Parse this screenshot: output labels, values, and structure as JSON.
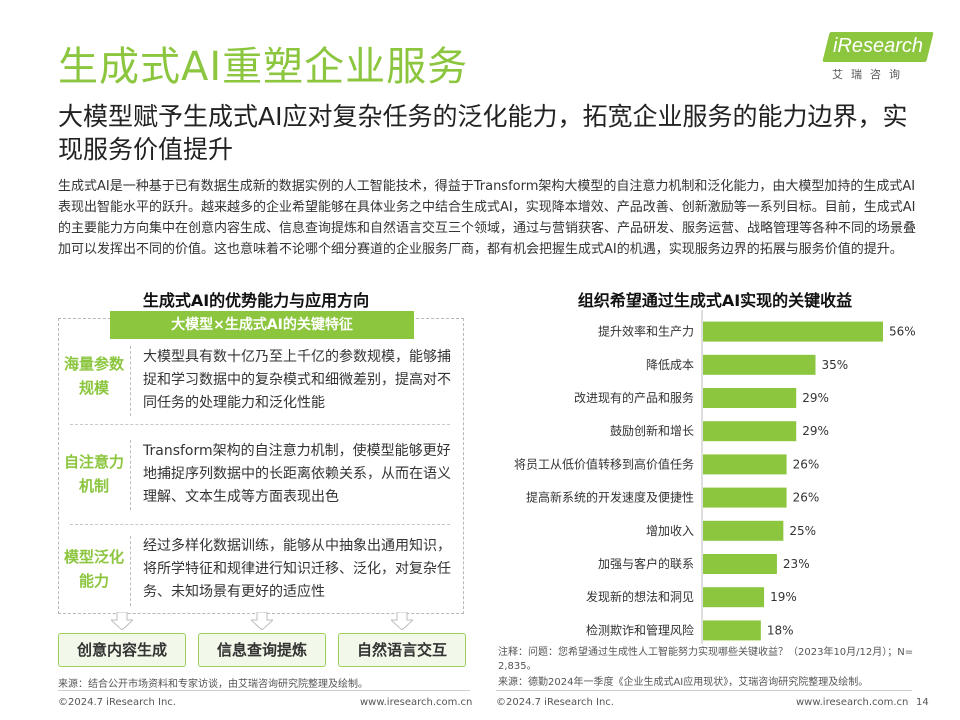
{
  "title": "生成式AI重塑企业服务",
  "logo": {
    "wordmark": "iResearch",
    "subtitle": "艾瑞咨询"
  },
  "subtitle": "大模型赋予生成式AI应对复杂任务的泛化能力，拓宽企业服务的能力边界，实现服务价值提升",
  "intro": "生成式AI是一种基于已有数据生成新的数据实例的人工智能技术，得益于Transform架构大模型的自注意力机制和泛化能力，由大模型加持的生成式AI表现出智能水平的跃升。越来越多的企业希望能够在具体业务之中结合生成式AI，实现降本增效、产品改善、创新激励等一系列目标。目前，生成式AI的主要能力方向集中在创意内容生成、信息查询提炼和自然语言交互三个领域，通过与营销获客、产品研发、服务运营、战略管理等各种不同的场景叠加可以发挥出不同的价值。这也意味着不论哪个细分赛道的企业服务厂商，都有机会把握生成式AI的机遇，实现服务边界的拓展与服务价值的提升。",
  "left_panel": {
    "heading": "生成式AI的优势能力与应用方向",
    "banner": "大模型×生成式AI的关键特征",
    "features": [
      {
        "label": "海量参数规模",
        "text": "大模型具有数十亿乃至上千亿的参数规模，能够捕捉和学习数据中的复杂模式和细微差别，提高对不同任务的处理能力和泛化性能"
      },
      {
        "label": "自注意力机制",
        "text": "Transform架构的自注意力机制，使模型能够更好地捕捉序列数据中的长距离依赖关系，从而在语义理解、文本生成等方面表现出色"
      },
      {
        "label": "模型泛化能力",
        "text": "经过多样化数据训练，能够从中抽象出通用知识，将所学特征和规律进行知识迁移、泛化，对复杂任务、未知场景有更好的适应性"
      }
    ],
    "applications": [
      "创意内容生成",
      "信息查询提炼",
      "自然语言交互"
    ],
    "source": "来源：结合公开市场资料和专家访谈，由艾瑞咨询研究院整理及绘制。"
  },
  "right_panel": {
    "heading": "组织希望通过生成式AI实现的关键收益",
    "note": "注释：问题：您希望通过生成性人工智能努力实现哪些关键收益？（2023年10月/12月）；N= 2,835。",
    "source": "来源：德勤2024年一季度《企业生成式AI应用现状》，艾瑞咨询研究院整理及绘制。"
  },
  "chart_data": {
    "type": "bar",
    "orientation": "horizontal",
    "categories": [
      "提升效率和生产力",
      "降低成本",
      "改进现有的产品和服务",
      "鼓励创新和增长",
      "将员工从低价值转移到高价值任务",
      "提高新系统的开发速度及便捷性",
      "增加收入",
      "加强与客户的联系",
      "发现新的想法和洞见",
      "检测欺诈和管理风险"
    ],
    "values": [
      56,
      35,
      29,
      29,
      26,
      26,
      25,
      23,
      19,
      18
    ],
    "labels": [
      "56%",
      "35%",
      "29%",
      "29%",
      "26%",
      "26%",
      "25%",
      "23%",
      "19%",
      "18%"
    ],
    "unit": "%",
    "xlim": [
      0,
      60
    ],
    "color": "#8cc63f",
    "grid": false,
    "legend": "none"
  },
  "footer": {
    "left_copyright": "©2024.7 iResearch Inc.",
    "left_url": "www.iresearch.com.cn",
    "right_copyright": "©2024.7 iResearch Inc.",
    "right_url": "www.iresearch.com.cn",
    "page_number": "14"
  }
}
